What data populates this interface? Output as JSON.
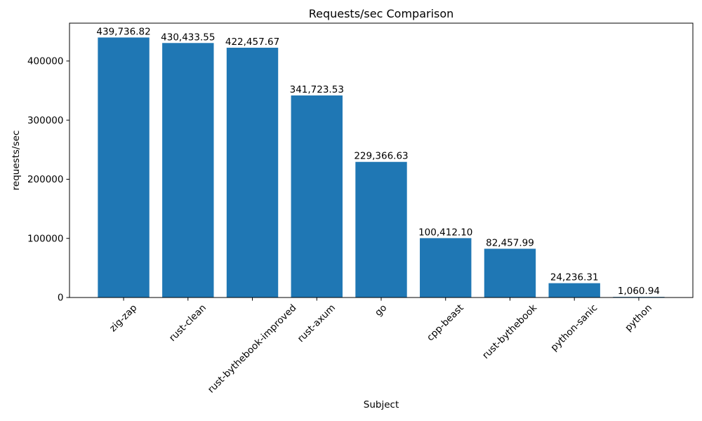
{
  "chart_data": {
    "type": "bar",
    "title": "Requests/sec Comparison",
    "xlabel": "Subject",
    "ylabel": "requests/sec",
    "categories": [
      "zig-zap",
      "rust-clean",
      "rust-bythebook-improved",
      "rust-axum",
      "go",
      "cpp-beast",
      "rust-bythebook",
      "python-sanic",
      "python"
    ],
    "values": [
      439736.82,
      430433.55,
      422457.67,
      341723.53,
      229366.63,
      100412.1,
      82457.99,
      24236.31,
      1060.94
    ],
    "bar_labels": [
      "439,736.82",
      "430,433.55",
      "422,457.67",
      "341,723.53",
      "229,366.63",
      "100,412.10",
      "82,457.99",
      "24,236.31",
      "1,060.94"
    ],
    "yticks": [
      0,
      100000,
      200000,
      300000,
      400000
    ],
    "ylim": [
      0,
      464000
    ],
    "bar_color": "#1f77b4",
    "spine_color": "#000000",
    "x_tick_rotation": 45,
    "grid": false,
    "legend": null
  }
}
